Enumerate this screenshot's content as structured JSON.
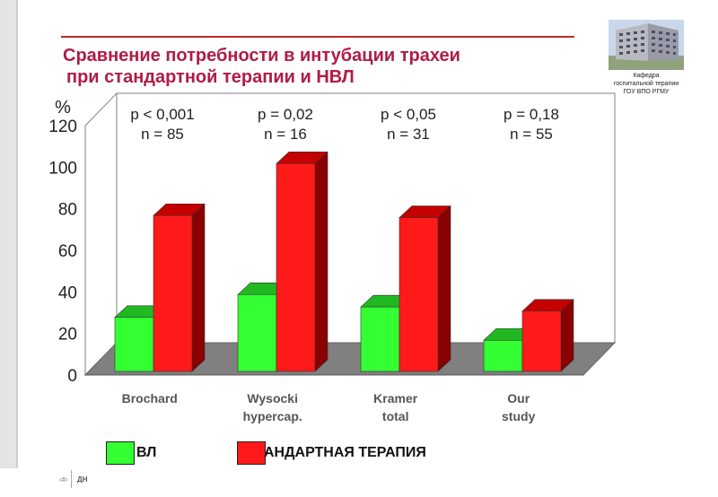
{
  "title": {
    "line1": "Сравнение потребности в интубации трахеи",
    "line2": "при стандартной терапии и НВЛ"
  },
  "department": {
    "line1": "Кафедра",
    "line2": "госпитальной терапии",
    "line3": "ГОУ ВПО РГМУ"
  },
  "legend": {
    "ta_label": "ВЛ",
    "va_label": "АНДАРТНАЯ ТЕРАПИЯ"
  },
  "footer": {
    "page": "‹#›",
    "text": "ДН"
  },
  "colors": {
    "green": "#33ff33",
    "red": "#ff1a1a",
    "title": "#b01c45"
  },
  "chart_data": {
    "type": "bar",
    "ylabel": "%",
    "ylim": [
      0,
      120
    ],
    "yticks": [
      0,
      20,
      40,
      60,
      80,
      100,
      120
    ],
    "categories": [
      [
        "Brochard"
      ],
      [
        "Wysocki",
        "hypercap."
      ],
      [
        "Kramer",
        "total"
      ],
      [
        "Our",
        "study"
      ]
    ],
    "annotations": [
      {
        "p": "p < 0,001",
        "n": "n = 85"
      },
      {
        "p": "p = 0,02",
        "n": "n = 16"
      },
      {
        "p": "p < 0,05",
        "n": "n = 31"
      },
      {
        "p": "p = 0,18",
        "n": "n = 55"
      }
    ],
    "series": [
      {
        "name": "ВЛ",
        "color": "#33ff33",
        "values": [
          26,
          37,
          31,
          15
        ]
      },
      {
        "name": "АНДАРТНАЯ ТЕРАПИЯ",
        "color": "#ff1a1a",
        "values": [
          75,
          100,
          74,
          29
        ]
      }
    ],
    "grid": false
  }
}
